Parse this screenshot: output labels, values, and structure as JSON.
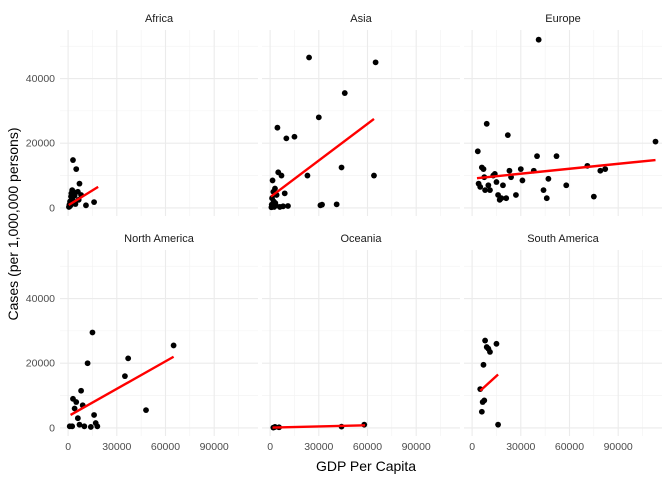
{
  "chart_data": {
    "type": "scatter",
    "xlabel": "GDP Per Capita",
    "ylabel": "Cases (per 1,000,000 persons)",
    "x_ticks": [
      0,
      30000,
      60000,
      90000
    ],
    "x_tick_labels": [
      "0",
      "30000",
      "60000",
      "90000"
    ],
    "y_ticks": [
      0,
      20000,
      40000
    ],
    "y_tick_labels": [
      "0",
      "20000",
      "40000"
    ],
    "xlim": [
      -5000,
      117000
    ],
    "ylim": [
      -2500,
      55000
    ],
    "grid": true,
    "point_color": "#000000",
    "fit_color": "#ff0000",
    "panels": [
      {
        "title": "Africa",
        "points": [
          [
            500,
            300
          ],
          [
            800,
            1000
          ],
          [
            1000,
            500
          ],
          [
            1200,
            2000
          ],
          [
            1500,
            800
          ],
          [
            1800,
            3500
          ],
          [
            2000,
            4500
          ],
          [
            2200,
            1500
          ],
          [
            2500,
            5500
          ],
          [
            2800,
            2500
          ],
          [
            3000,
            14800
          ],
          [
            3200,
            5000
          ],
          [
            3500,
            4200
          ],
          [
            4000,
            3800
          ],
          [
            4500,
            1200
          ],
          [
            5000,
            12000
          ],
          [
            6000,
            5000
          ],
          [
            6500,
            2500
          ],
          [
            7000,
            7500
          ],
          [
            8000,
            4000
          ],
          [
            11000,
            800
          ],
          [
            16000,
            1800
          ]
        ],
        "fit": [
          [
            400,
            900
          ],
          [
            18500,
            6500
          ]
        ]
      },
      {
        "title": "Asia",
        "points": [
          [
            800,
            200
          ],
          [
            1000,
            1000
          ],
          [
            1200,
            3000
          ],
          [
            1500,
            500
          ],
          [
            1500,
            8500
          ],
          [
            2000,
            5000
          ],
          [
            2200,
            2000
          ],
          [
            2500,
            300
          ],
          [
            3000,
            6000
          ],
          [
            3200,
            1500
          ],
          [
            3500,
            800
          ],
          [
            4000,
            4000
          ],
          [
            4500,
            24800
          ],
          [
            5000,
            11000
          ],
          [
            6000,
            300
          ],
          [
            7000,
            10000
          ],
          [
            8000,
            500
          ],
          [
            9000,
            4500
          ],
          [
            10000,
            21500
          ],
          [
            11000,
            600
          ],
          [
            15000,
            22000
          ],
          [
            23000,
            10000
          ],
          [
            24000,
            46500
          ],
          [
            30000,
            28000
          ],
          [
            31000,
            800
          ],
          [
            32000,
            1000
          ],
          [
            41000,
            1100
          ],
          [
            44000,
            12500
          ],
          [
            46000,
            35500
          ],
          [
            64000,
            10000
          ],
          [
            65000,
            45000
          ]
        ],
        "fit": [
          [
            500,
            3500
          ],
          [
            64000,
            27500
          ]
        ]
      },
      {
        "title": "Europe",
        "points": [
          [
            3500,
            17500
          ],
          [
            4000,
            7500
          ],
          [
            5000,
            6500
          ],
          [
            6000,
            12500
          ],
          [
            7000,
            12000
          ],
          [
            7500,
            9500
          ],
          [
            8000,
            5500
          ],
          [
            9000,
            26000
          ],
          [
            10000,
            7000
          ],
          [
            11000,
            5500
          ],
          [
            13000,
            10000
          ],
          [
            14000,
            10500
          ],
          [
            15000,
            8000
          ],
          [
            16000,
            4000
          ],
          [
            17000,
            2500
          ],
          [
            18000,
            3000
          ],
          [
            19000,
            7000
          ],
          [
            21000,
            3000
          ],
          [
            22000,
            22500
          ],
          [
            23000,
            11500
          ],
          [
            24000,
            9500
          ],
          [
            27000,
            4000
          ],
          [
            30000,
            12000
          ],
          [
            31000,
            8500
          ],
          [
            38000,
            11500
          ],
          [
            40000,
            16000
          ],
          [
            41000,
            52000
          ],
          [
            44000,
            5500
          ],
          [
            46000,
            3000
          ],
          [
            47000,
            9000
          ],
          [
            52000,
            16000
          ],
          [
            58000,
            7000
          ],
          [
            71000,
            13000
          ],
          [
            75000,
            3500
          ],
          [
            79000,
            11500
          ],
          [
            82000,
            12000
          ],
          [
            113000,
            20500
          ]
        ],
        "fit": [
          [
            3000,
            9200
          ],
          [
            113000,
            14800
          ]
        ]
      },
      {
        "title": "North America",
        "points": [
          [
            1000,
            500
          ],
          [
            2500,
            500
          ],
          [
            3000,
            9000
          ],
          [
            4000,
            6000
          ],
          [
            5000,
            8000
          ],
          [
            6000,
            3000
          ],
          [
            7000,
            1000
          ],
          [
            8000,
            11500
          ],
          [
            9000,
            7000
          ],
          [
            10000,
            500
          ],
          [
            12000,
            20000
          ],
          [
            14000,
            300
          ],
          [
            15000,
            29500
          ],
          [
            16000,
            4000
          ],
          [
            17000,
            1500
          ],
          [
            18000,
            500
          ],
          [
            35000,
            16000
          ],
          [
            37000,
            21500
          ],
          [
            48000,
            5500
          ],
          [
            65000,
            25500
          ]
        ],
        "fit": [
          [
            1500,
            4000
          ],
          [
            65000,
            22000
          ]
        ]
      },
      {
        "title": "Oceania",
        "points": [
          [
            2000,
            100
          ],
          [
            3000,
            300
          ],
          [
            5500,
            200
          ],
          [
            44000,
            400
          ],
          [
            58000,
            1000
          ]
        ],
        "fit": [
          [
            1500,
            100
          ],
          [
            58500,
            800
          ]
        ]
      },
      {
        "title": "South America",
        "points": [
          [
            5000,
            12000
          ],
          [
            6000,
            5000
          ],
          [
            6500,
            8000
          ],
          [
            7000,
            19500
          ],
          [
            7500,
            8500
          ],
          [
            8000,
            27000
          ],
          [
            9000,
            25000
          ],
          [
            10000,
            24500
          ],
          [
            11000,
            23500
          ],
          [
            15000,
            26000
          ],
          [
            16000,
            1000
          ]
        ],
        "fit": [
          [
            5000,
            11500
          ],
          [
            16000,
            16500
          ]
        ]
      }
    ]
  }
}
